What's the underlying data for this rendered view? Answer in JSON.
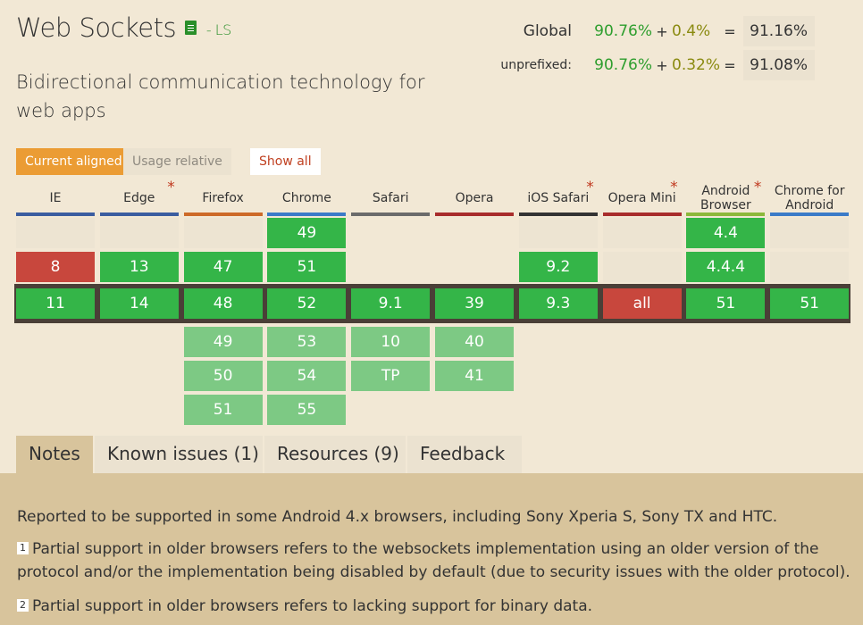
{
  "feature": {
    "title": "Web Sockets",
    "status": "- LS",
    "icon": "document-icon",
    "description": "Bidirectional communication technology for web apps"
  },
  "usage": {
    "global": {
      "label": "Global",
      "supported": "90.76%",
      "partial": "0.4%",
      "total": "91.16%"
    },
    "unprefixed": {
      "label": "unprefixed:",
      "supported": "90.76%",
      "partial": "0.32%",
      "total": "91.08%"
    },
    "plus": "+",
    "equals": "="
  },
  "view": {
    "current_aligned": "Current aligned",
    "usage_relative": "Usage relative",
    "show_all": "Show all"
  },
  "browsers": [
    {
      "name": "IE",
      "asterisk": false,
      "color": "#3b5da0",
      "versions": {
        "past": [
          "",
          "8"
        ],
        "current": "11",
        "future": []
      },
      "status": {
        "past": [
          "e",
          "n"
        ],
        "current": "y",
        "future": []
      }
    },
    {
      "name": "Edge",
      "asterisk": true,
      "color": "#3b5da0",
      "versions": {
        "past": [
          "",
          "13"
        ],
        "current": "14",
        "future": []
      },
      "status": {
        "past": [
          "e",
          "y"
        ],
        "current": "y",
        "future": []
      }
    },
    {
      "name": "Firefox",
      "asterisk": false,
      "color": "#cd6a28",
      "versions": {
        "past": [
          "",
          "47"
        ],
        "current": "48",
        "future": [
          "49",
          "50",
          "51"
        ]
      },
      "status": {
        "past": [
          "e",
          "y"
        ],
        "current": "y",
        "future": [
          "f",
          "f",
          "f"
        ]
      }
    },
    {
      "name": "Chrome",
      "asterisk": false,
      "color": "#3b7bc8",
      "versions": {
        "past": [
          "49",
          "51"
        ],
        "current": "52",
        "future": [
          "53",
          "54",
          "55"
        ]
      },
      "status": {
        "past": [
          "y",
          "y"
        ],
        "current": "y",
        "future": [
          "f",
          "f",
          "f"
        ]
      }
    },
    {
      "name": "Safari",
      "asterisk": false,
      "color": "#6b6b6b",
      "versions": {
        "past": [
          "",
          ""
        ],
        "current": "9.1",
        "future": [
          "10",
          "TP"
        ]
      },
      "status": {
        "past": [
          "",
          ""
        ],
        "current": "y",
        "future": [
          "f",
          "f"
        ]
      }
    },
    {
      "name": "Opera",
      "asterisk": false,
      "color": "#a82c2c",
      "versions": {
        "past": [
          "",
          ""
        ],
        "current": "39",
        "future": [
          "40",
          "41"
        ]
      },
      "status": {
        "past": [
          "",
          ""
        ],
        "current": "y",
        "future": [
          "f",
          "f"
        ]
      }
    },
    {
      "name": "iOS Safari",
      "asterisk": true,
      "color": "#333333",
      "versions": {
        "past": [
          "",
          "9.2"
        ],
        "current": "9.3",
        "future": []
      },
      "status": {
        "past": [
          "e",
          "y"
        ],
        "current": "y",
        "future": []
      }
    },
    {
      "name": "Opera Mini",
      "asterisk": true,
      "color": "#a82c2c",
      "versions": {
        "past": [
          "",
          ""
        ],
        "current": "all",
        "future": []
      },
      "status": {
        "past": [
          "e",
          "e"
        ],
        "current": "n",
        "future": []
      }
    },
    {
      "name": "Android Browser",
      "asterisk": true,
      "color": "#8cb83b",
      "versions": {
        "past": [
          "4.4",
          "4.4.4"
        ],
        "current": "51",
        "future": []
      },
      "status": {
        "past": [
          "y",
          "y"
        ],
        "current": "y",
        "future": []
      }
    },
    {
      "name": "Chrome for Android",
      "asterisk": false,
      "color": "#3b7bc8",
      "versions": {
        "past": [
          "",
          ""
        ],
        "current": "51",
        "future": []
      },
      "status": {
        "past": [
          "e",
          "e"
        ],
        "current": "y",
        "future": []
      }
    }
  ],
  "tabs": [
    {
      "label": "Notes",
      "active": true
    },
    {
      "label": "Known issues (1)",
      "active": false
    },
    {
      "label": "Resources (9)",
      "active": false
    },
    {
      "label": "Feedback",
      "active": false
    }
  ],
  "notes": {
    "general": "Reported to be supported in some Android 4.x browsers, including Sony Xperia S, Sony TX and HTC.",
    "numbered": [
      {
        "num": "1",
        "text": "Partial support in older browsers refers to the websockets implementation using an older version of the protocol and/or the implementation being disabled by default (due to security issues with the older protocol)."
      },
      {
        "num": "2",
        "text": "Partial support in older browsers refers to lacking support for binary data."
      }
    ]
  }
}
